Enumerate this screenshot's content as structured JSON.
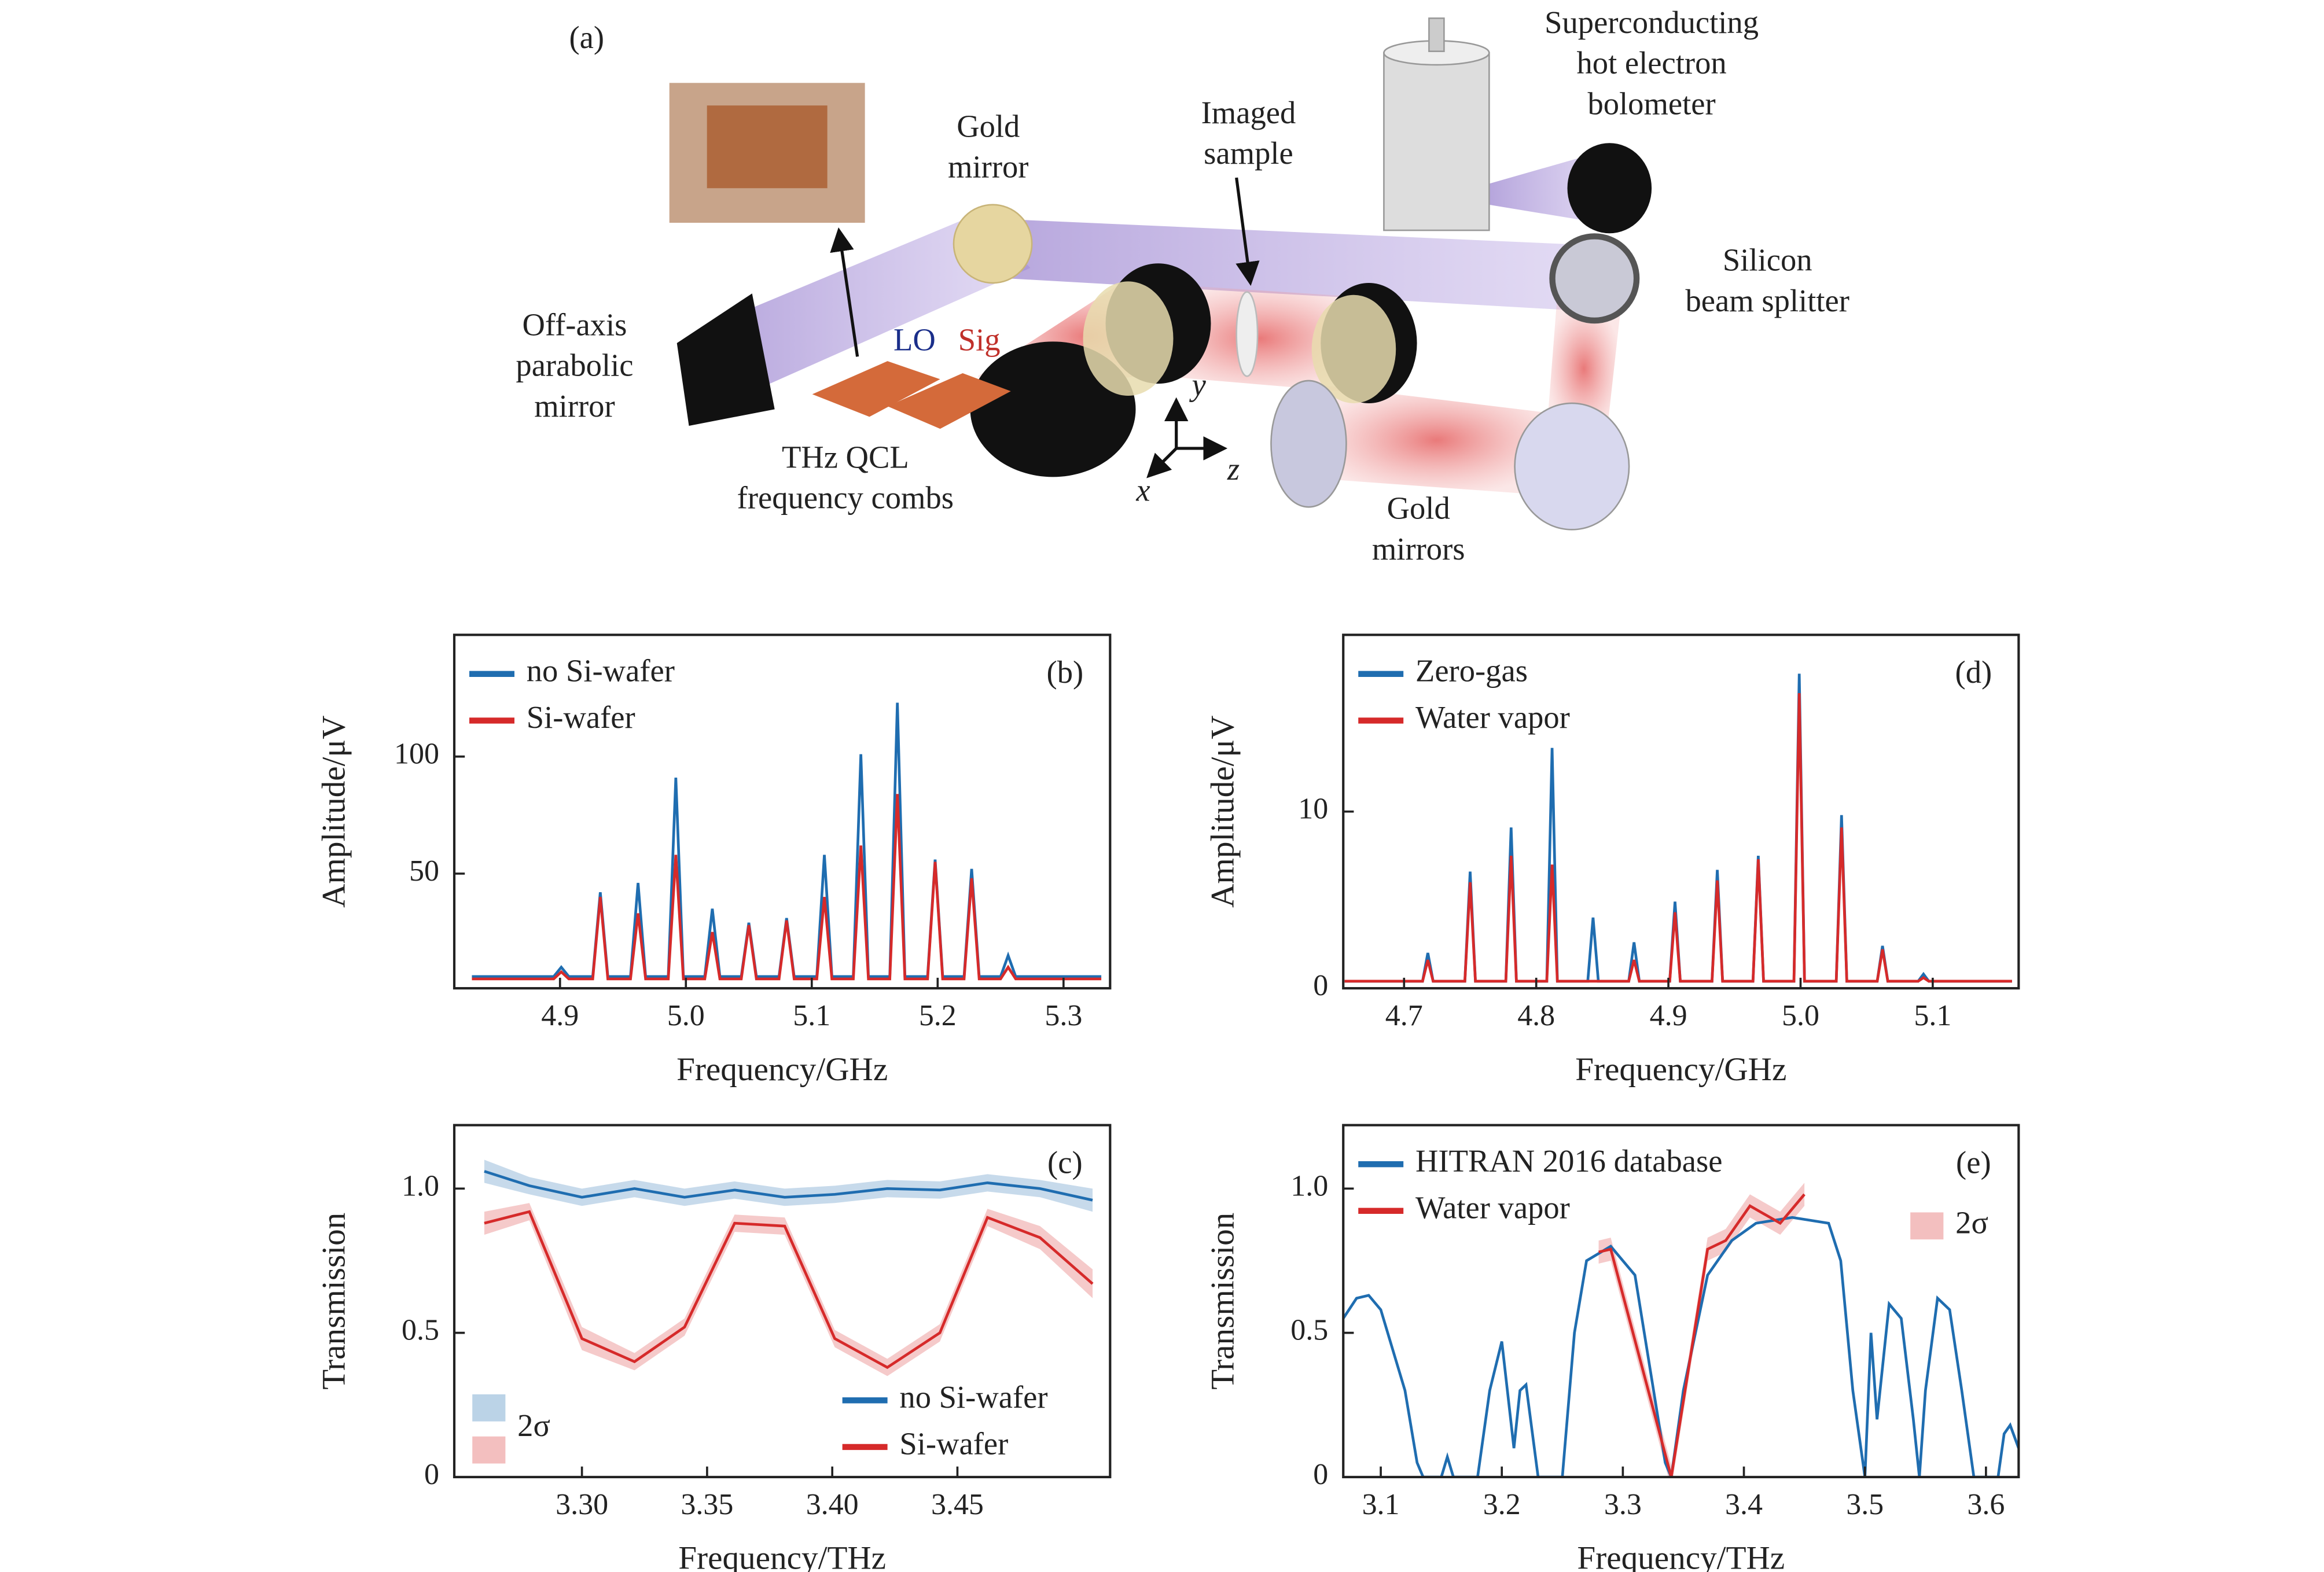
{
  "diagram": {
    "panel_label": "(a)",
    "labels": [
      {
        "lines": [
          "Gold",
          "mirror"
        ]
      },
      {
        "lines": [
          "Imaged",
          "sample"
        ]
      },
      {
        "lines": [
          "Superconducting",
          "hot electron",
          "bolometer"
        ]
      },
      {
        "lines": [
          "Silicon",
          "beam splitter"
        ]
      },
      {
        "lines": [
          "Off-axis",
          "parabolic",
          "mirror"
        ]
      },
      {
        "lines": [
          "THz QCL",
          "frequency combs"
        ]
      },
      {
        "lines": [
          "Gold",
          "mirrors"
        ]
      }
    ],
    "lo": "LO",
    "sig": "Sig",
    "axes": [
      "x",
      "y",
      "z"
    ]
  },
  "chart_data": [
    {
      "type": "line",
      "panel_label": "(b)",
      "xlabel": "Frequency/GHz",
      "ylabel": "Amplitude/μV",
      "legend": "upper left",
      "xlim": [
        4.816,
        5.337
      ],
      "ylim": [
        1,
        152
      ],
      "xticks": [
        4.9,
        {
          "value": 5,
          "label": "5.0"
        },
        5.1,
        5.2,
        5.3
      ],
      "yticks": [
        50,
        100
      ],
      "series": [
        {
          "name": "no Si-wafer",
          "color": "#1f6db0",
          "x": [
            4.83,
            4.895,
            4.901,
            4.907,
            4.926,
            4.932,
            4.938,
            4.956,
            4.962,
            4.968,
            4.986,
            4.992,
            4.998,
            5.015,
            5.021,
            5.027,
            5.044,
            5.05,
            5.056,
            5.074,
            5.08,
            5.086,
            5.104,
            5.11,
            5.116,
            5.133,
            5.139,
            5.145,
            5.162,
            5.168,
            5.174,
            5.192,
            5.198,
            5.204,
            5.221,
            5.227,
            5.233,
            5.25,
            5.256,
            5.262,
            5.33
          ],
          "values": [
            6,
            6,
            10,
            6,
            6,
            42,
            6,
            6,
            46,
            6,
            6,
            91,
            6,
            6,
            35,
            6,
            6,
            29,
            6,
            6,
            31,
            6,
            6,
            58,
            6,
            6,
            101,
            6,
            6,
            123,
            6,
            6,
            56,
            6,
            6,
            52,
            6,
            6,
            15,
            6,
            6
          ]
        },
        {
          "name": "Si-wafer",
          "color": "#d62a2a",
          "x": [
            4.83,
            4.895,
            4.901,
            4.907,
            4.926,
            4.932,
            4.938,
            4.956,
            4.962,
            4.968,
            4.986,
            4.992,
            4.998,
            5.015,
            5.021,
            5.027,
            5.044,
            5.05,
            5.056,
            5.074,
            5.08,
            5.086,
            5.104,
            5.11,
            5.116,
            5.133,
            5.139,
            5.145,
            5.162,
            5.168,
            5.174,
            5.192,
            5.198,
            5.204,
            5.221,
            5.227,
            5.233,
            5.25,
            5.256,
            5.262,
            5.33
          ],
          "values": [
            5,
            5,
            8,
            5,
            5,
            40,
            5,
            5,
            33,
            5,
            5,
            58,
            5,
            5,
            25,
            5,
            5,
            28,
            5,
            5,
            30,
            5,
            5,
            40,
            5,
            5,
            62,
            5,
            5,
            84,
            5,
            5,
            55,
            5,
            5,
            48,
            5,
            5,
            10,
            5,
            5
          ]
        }
      ]
    },
    {
      "type": "line",
      "panel_label": "(c)",
      "xlabel": "Frequency/THz",
      "ylabel": "Transmission",
      "legend": "lower right",
      "band_label": "2σ",
      "band_legend": "lower left",
      "xlim": [
        3.249,
        3.511
      ],
      "ylim": [
        0,
        1.22
      ],
      "xticks": [
        {
          "value": 3.3,
          "label": "3.30"
        },
        3.35,
        {
          "value": 3.4,
          "label": "3.40"
        },
        3.45
      ],
      "yticks": [
        0,
        0.5,
        {
          "value": 1,
          "label": "1.0"
        }
      ],
      "series": [
        {
          "name": "no Si-wafer",
          "color": "#1f6db0",
          "x": [
            3.261,
            3.279,
            3.3,
            3.321,
            3.341,
            3.361,
            3.381,
            3.401,
            3.422,
            3.443,
            3.462,
            3.483,
            3.504
          ],
          "values": [
            1.06,
            1.01,
            0.97,
            1.0,
            0.97,
            0.995,
            0.97,
            0.98,
            1.0,
            0.995,
            1.02,
            1.0,
            0.96
          ],
          "errors": [
            0.04,
            0.03,
            0.03,
            0.03,
            0.03,
            0.03,
            0.03,
            0.03,
            0.03,
            0.03,
            0.03,
            0.03,
            0.04
          ]
        },
        {
          "name": "Si-wafer",
          "color": "#d62a2a",
          "x": [
            3.261,
            3.279,
            3.3,
            3.321,
            3.341,
            3.361,
            3.381,
            3.401,
            3.422,
            3.443,
            3.462,
            3.483,
            3.504
          ],
          "values": [
            0.88,
            0.92,
            0.48,
            0.4,
            0.52,
            0.88,
            0.87,
            0.48,
            0.38,
            0.5,
            0.9,
            0.83,
            0.67
          ],
          "errors": [
            0.04,
            0.03,
            0.04,
            0.03,
            0.03,
            0.03,
            0.03,
            0.03,
            0.03,
            0.03,
            0.03,
            0.04,
            0.05
          ]
        }
      ]
    },
    {
      "type": "line",
      "panel_label": "(d)",
      "xlabel": "Frequency/GHz",
      "ylabel": "Amplitude/μV",
      "legend": "upper left",
      "xlim": [
        4.654,
        5.165
      ],
      "ylim": [
        0,
        20
      ],
      "xticks": [
        4.7,
        4.8,
        4.9,
        {
          "value": 5,
          "label": "5.0"
        },
        5.1
      ],
      "yticks": [
        0,
        10
      ],
      "series": [
        {
          "name": "Zero-gas",
          "color": "#1f6db0",
          "x": [
            4.655,
            4.714,
            4.718,
            4.722,
            4.746,
            4.75,
            4.754,
            4.777,
            4.781,
            4.785,
            4.808,
            4.812,
            4.816,
            4.839,
            4.843,
            4.847,
            4.87,
            4.874,
            4.878,
            4.901,
            4.905,
            4.909,
            4.933,
            4.937,
            4.941,
            4.964,
            4.968,
            4.972,
            4.995,
            4.999,
            5.003,
            5.027,
            5.031,
            5.035,
            5.058,
            5.062,
            5.066,
            5.089,
            5.093,
            5.097,
            5.16
          ],
          "values": [
            0.4,
            0.4,
            2,
            0.4,
            0.4,
            6.6,
            0.4,
            0.4,
            9.1,
            0.4,
            0.4,
            13.6,
            0.4,
            0.4,
            4,
            0.4,
            0.4,
            2.6,
            0.4,
            0.4,
            4.9,
            0.4,
            0.4,
            6.7,
            0.4,
            0.4,
            7.5,
            0.4,
            0.4,
            17.8,
            0.4,
            0.4,
            9.8,
            0.4,
            0.4,
            2.4,
            0.4,
            0.4,
            0.8,
            0.4,
            0.4
          ]
        },
        {
          "name": "Water vapor",
          "color": "#d62a2a",
          "x": [
            4.655,
            4.714,
            4.718,
            4.722,
            4.746,
            4.75,
            4.754,
            4.777,
            4.781,
            4.785,
            4.808,
            4.812,
            4.816,
            4.839,
            4.843,
            4.847,
            4.87,
            4.874,
            4.878,
            4.901,
            4.905,
            4.909,
            4.933,
            4.937,
            4.941,
            4.964,
            4.968,
            4.972,
            4.995,
            4.999,
            5.003,
            5.027,
            5.031,
            5.035,
            5.058,
            5.062,
            5.066,
            5.089,
            5.093,
            5.097,
            5.16
          ],
          "values": [
            0.4,
            0.4,
            1.6,
            0.4,
            0.4,
            6,
            0.4,
            0.4,
            7.5,
            0.4,
            0.4,
            7,
            0.4,
            0.4,
            0.4,
            0.4,
            0.4,
            1.6,
            0.4,
            0.4,
            4.3,
            0.4,
            0.4,
            6.1,
            0.4,
            0.4,
            7.3,
            0.4,
            0.4,
            16.7,
            0.4,
            0.4,
            9.1,
            0.4,
            0.4,
            2.2,
            0.4,
            0.4,
            0.6,
            0.4,
            0.4
          ]
        }
      ]
    },
    {
      "type": "line",
      "panel_label": "(e)",
      "xlabel": "Frequency/THz",
      "ylabel": "Transmission",
      "legend": "upper left",
      "band_label": "2σ",
      "band_legend": "upper right",
      "xlim": [
        3.069,
        3.627
      ],
      "ylim": [
        0,
        1.22
      ],
      "xticks": [
        3.1,
        3.2,
        3.3,
        3.4,
        3.5,
        3.6
      ],
      "yticks": [
        0,
        0.5,
        {
          "value": 1,
          "label": "1.0"
        }
      ],
      "series": [
        {
          "name": "HITRAN 2016 database",
          "color": "#1f6db0",
          "x": [
            3.069,
            3.08,
            3.09,
            3.1,
            3.12,
            3.13,
            3.135,
            3.15,
            3.155,
            3.16,
            3.18,
            3.19,
            3.2,
            3.21,
            3.215,
            3.22,
            3.23,
            3.25,
            3.26,
            3.27,
            3.29,
            3.31,
            3.335,
            3.34,
            3.35,
            3.37,
            3.39,
            3.41,
            3.44,
            3.47,
            3.48,
            3.49,
            3.5,
            3.505,
            3.51,
            3.52,
            3.53,
            3.54,
            3.545,
            3.55,
            3.56,
            3.57,
            3.58,
            3.59,
            3.61,
            3.615,
            3.62,
            3.627
          ],
          "values": [
            0.55,
            0.62,
            0.63,
            0.58,
            0.3,
            0.05,
            0,
            0,
            0.07,
            0,
            0,
            0.3,
            0.47,
            0.1,
            0.3,
            0.32,
            0,
            0,
            0.5,
            0.75,
            0.8,
            0.7,
            0.05,
            0,
            0.3,
            0.7,
            0.82,
            0.88,
            0.9,
            0.88,
            0.75,
            0.3,
            0,
            0.5,
            0.2,
            0.6,
            0.55,
            0.2,
            0,
            0.3,
            0.62,
            0.58,
            0.3,
            0,
            0,
            0.15,
            0.18,
            0.1
          ]
        },
        {
          "name": "Water vapor",
          "color": "#d62a2a",
          "x": [
            3.28,
            3.29,
            3.34,
            3.37,
            3.385,
            3.405,
            3.43,
            3.45
          ],
          "values": [
            0.78,
            0.79,
            0,
            0.79,
            0.82,
            0.94,
            0.88,
            0.98
          ],
          "errors": [
            0.04,
            0.04,
            0.04,
            0.04,
            0.04,
            0.04,
            0.04,
            0.04
          ]
        }
      ]
    }
  ]
}
